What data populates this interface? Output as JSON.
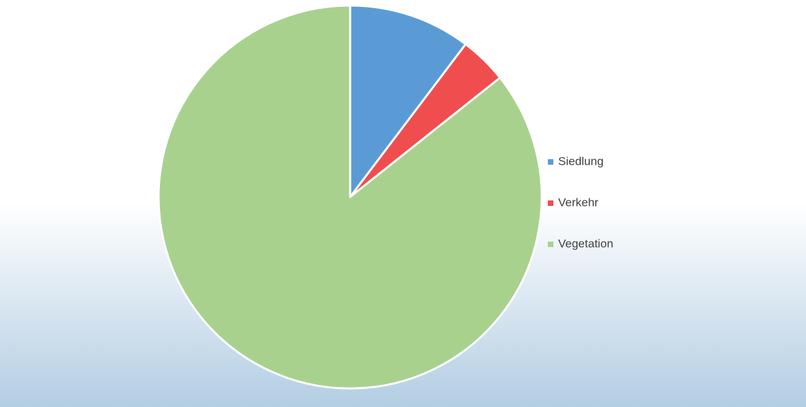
{
  "chart_data": {
    "type": "pie",
    "categories": [
      "Siedlung",
      "Verkehr",
      "Vegetation"
    ],
    "values": [
      10.3,
      4.0,
      85.7
    ],
    "colors": [
      "#5b9bd5",
      "#f04e4e",
      "#a9d18e"
    ],
    "legend": "right"
  }
}
